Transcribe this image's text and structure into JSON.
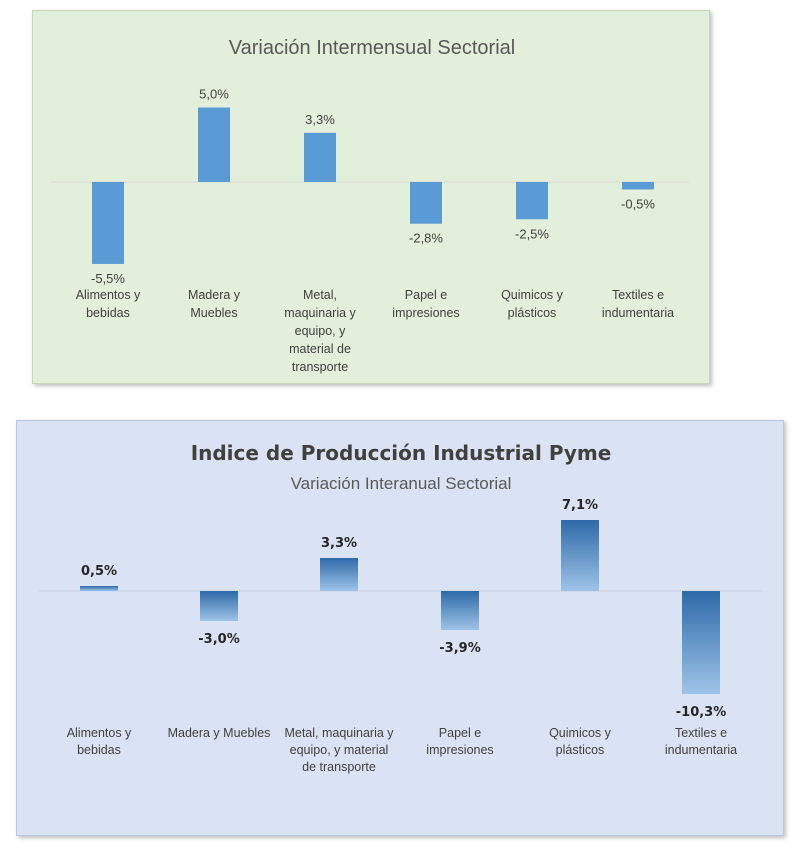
{
  "chart_data": [
    {
      "type": "bar",
      "title": "Variación Intermensual Sectorial",
      "categories": [
        [
          "Alimentos y",
          "bebidas"
        ],
        [
          "Madera y",
          "Muebles"
        ],
        [
          "Metal,",
          "maquinaria y",
          "equipo, y",
          "material de",
          "transporte"
        ],
        [
          "Papel e",
          "impresiones"
        ],
        [
          "Quimicos y",
          "plásticos"
        ],
        [
          "Textiles e",
          "indumentaria"
        ]
      ],
      "values": [
        -5.5,
        5.0,
        3.3,
        -2.8,
        -2.5,
        -0.5
      ],
      "data_labels": [
        "-5,5%",
        "5,0%",
        "3,3%",
        "-2,8%",
        "-2,5%",
        "-0,5%"
      ],
      "bar_color": "#5b9bd5",
      "background": "#e2efda",
      "grid": false,
      "legend": "none"
    },
    {
      "type": "bar",
      "title": "Indice de Producción Industrial Pyme",
      "subtitle": "Variación Interanual Sectorial",
      "categories": [
        [
          "Alimentos y",
          "bebidas"
        ],
        [
          "Madera y Muebles"
        ],
        [
          "Metal, maquinaria y",
          "equipo, y material",
          "de transporte"
        ],
        [
          "Papel e",
          "impresiones"
        ],
        [
          "Quimicos y",
          "plásticos"
        ],
        [
          "Textiles e",
          "indumentaria"
        ]
      ],
      "values": [
        0.5,
        -3.0,
        3.3,
        -3.9,
        7.1,
        -10.3
      ],
      "data_labels": [
        "0,5%",
        "-3,0%",
        "3,3%",
        "-3,9%",
        "7,1%",
        "-10,3%"
      ],
      "bar_color_dark": "#2e6aa8",
      "bar_color_light": "#9ec3e8",
      "background": "#dae3f3",
      "grid": false,
      "legend": "none"
    }
  ]
}
